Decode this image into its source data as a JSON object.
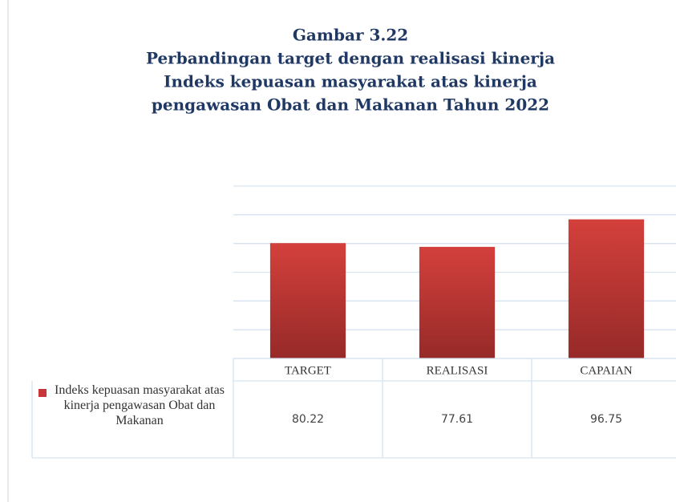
{
  "chart_data": {
    "type": "bar",
    "title": [
      "Gambar 3.22",
      "Perbandingan target dengan realisasi kinerja",
      "Indeks kepuasan masyarakat atas kinerja",
      "pengawasan Obat dan Makanan Tahun 2022"
    ],
    "categories": [
      "TARGET",
      "REALISASI",
      "CAPAIAN"
    ],
    "series": [
      {
        "name": "Indeks kepuasan masyarakat atas kinerja pengawasan Obat dan Makanan",
        "color": "#c9363a",
        "values": [
          80.22,
          77.61,
          96.75
        ]
      }
    ],
    "ylim": [
      0,
      120
    ],
    "yticks": [
      0,
      20,
      40,
      60,
      80,
      100,
      120
    ],
    "grid": true
  }
}
